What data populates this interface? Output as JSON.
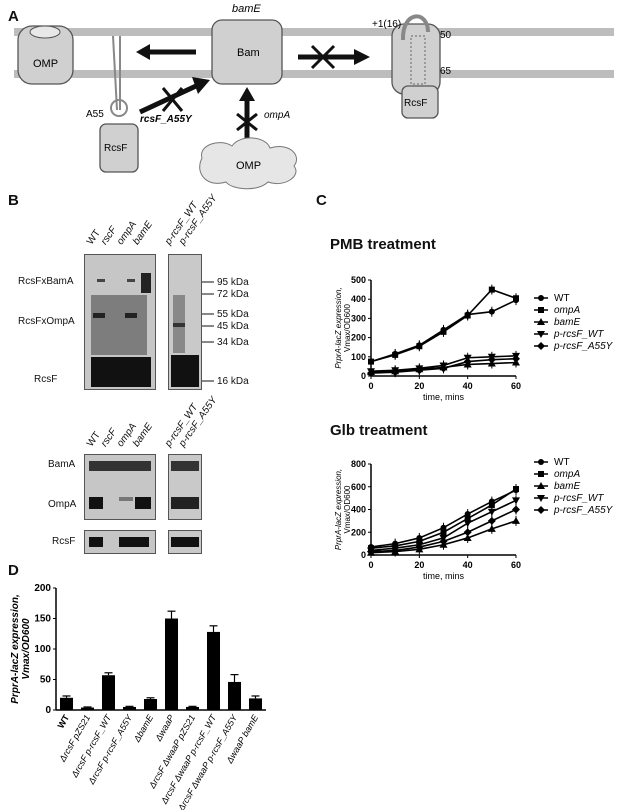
{
  "panels": {
    "a": "A",
    "b": "B",
    "c": "C",
    "d": "D"
  },
  "panelA": {
    "omp_left": "OMP",
    "bamE_label": "bamE",
    "bam_label": "Bam",
    "residue_label": "+1(16)",
    "res50": "50",
    "res65": "65",
    "rcsF_right": "RcsF",
    "a55_label": "A55",
    "rcsF_mut_label": "rcsF_A55Y",
    "ompA_label": "ompA",
    "rcsF_left": "RcsF",
    "omp_cloud": "OMP"
  },
  "panelB": {
    "top_lanes_left": [
      "WT",
      "rscF",
      "ompA",
      "bamE"
    ],
    "top_lanes_right": [
      "p-rcsF_WT",
      "p-rcsF_A55Y"
    ],
    "row_labels": [
      "RcsFxBamA",
      "RcsFxOmpA",
      "RcsF"
    ],
    "markers": [
      "95 kDa",
      "72 kDa",
      "55 kDa",
      "45 kDa",
      "34 kDa",
      "16 kDa"
    ],
    "bottom_lanes_left": [
      "WT",
      "rscF",
      "ompA",
      "bamE"
    ],
    "bottom_lanes_right": [
      "p-rcsF_WT",
      "p-rcsF_A55Y"
    ],
    "bottom_rows": [
      "BamA",
      "OmpA",
      "RcsF"
    ]
  },
  "chart_data": [
    {
      "type": "line",
      "title": "PMB treatment",
      "xlabel": "time, mins",
      "ylabel": "PrprA-lacZ expression, Vmax/OD600",
      "xlim": [
        0,
        60
      ],
      "ylim": [
        0,
        500
      ],
      "xticks": [
        0,
        20,
        40,
        60
      ],
      "yticks": [
        0,
        100,
        200,
        300,
        400,
        500
      ],
      "x": [
        0,
        10,
        20,
        30,
        40,
        50,
        60
      ],
      "series": [
        {
          "name": "WT",
          "values": [
            75,
            115,
            160,
            240,
            320,
            335,
            395
          ]
        },
        {
          "name": "ompA",
          "values": [
            75,
            110,
            155,
            230,
            315,
            450,
            405
          ]
        },
        {
          "name": "bamE",
          "values": [
            20,
            25,
            35,
            45,
            60,
            65,
            70
          ]
        },
        {
          "name": "p-rcsF_WT",
          "values": [
            25,
            30,
            40,
            55,
            95,
            100,
            105
          ]
        },
        {
          "name": "p-rcsF_A55Y",
          "values": [
            15,
            20,
            30,
            40,
            75,
            85,
            90
          ]
        }
      ]
    },
    {
      "type": "line",
      "title": "Glb treatment",
      "xlabel": "time, mins",
      "ylabel": "PrprA-lacZ expression, Vmax/OD600",
      "xlim": [
        0,
        60
      ],
      "ylim": [
        0,
        800
      ],
      "xticks": [
        0,
        20,
        40,
        60
      ],
      "yticks": [
        0,
        200,
        400,
        600,
        800
      ],
      "x": [
        0,
        10,
        20,
        30,
        40,
        50,
        60
      ],
      "series": [
        {
          "name": "WT",
          "values": [
            70,
            100,
            150,
            240,
            360,
            470,
            570
          ]
        },
        {
          "name": "ompA",
          "values": [
            60,
            80,
            120,
            200,
            320,
            440,
            580
          ]
        },
        {
          "name": "bamE",
          "values": [
            20,
            30,
            50,
            90,
            150,
            230,
            300
          ]
        },
        {
          "name": "p-rcsF_WT",
          "values": [
            40,
            60,
            90,
            150,
            280,
            380,
            480
          ]
        },
        {
          "name": "p-rcsF_A55Y",
          "values": [
            30,
            40,
            70,
            120,
            200,
            300,
            400
          ]
        }
      ]
    },
    {
      "type": "bar",
      "ylabel": "PrprA-lacZ expression, Vmax/OD600",
      "ylim": [
        0,
        200
      ],
      "yticks": [
        0,
        50,
        100,
        150,
        200
      ],
      "categories": [
        "WT",
        "ΔrcsF pZS21",
        "ΔrcsF p-rcsF_WT",
        "ΔrcsF p-rcsF_A55Y",
        "ΔbamE",
        "ΔwaaP",
        "ΔrcsF ΔwaaP pZS21",
        "ΔrcsF ΔwaaP p-rcsF_WT",
        "ΔrcsF ΔwaaP p-rcsF_A55Y",
        "ΔwaaP bamE"
      ],
      "values": [
        20,
        4,
        57,
        5,
        18,
        150,
        5,
        128,
        46,
        19
      ],
      "errors": [
        3,
        1,
        4,
        1,
        2,
        12,
        1,
        10,
        12,
        4
      ]
    }
  ]
}
